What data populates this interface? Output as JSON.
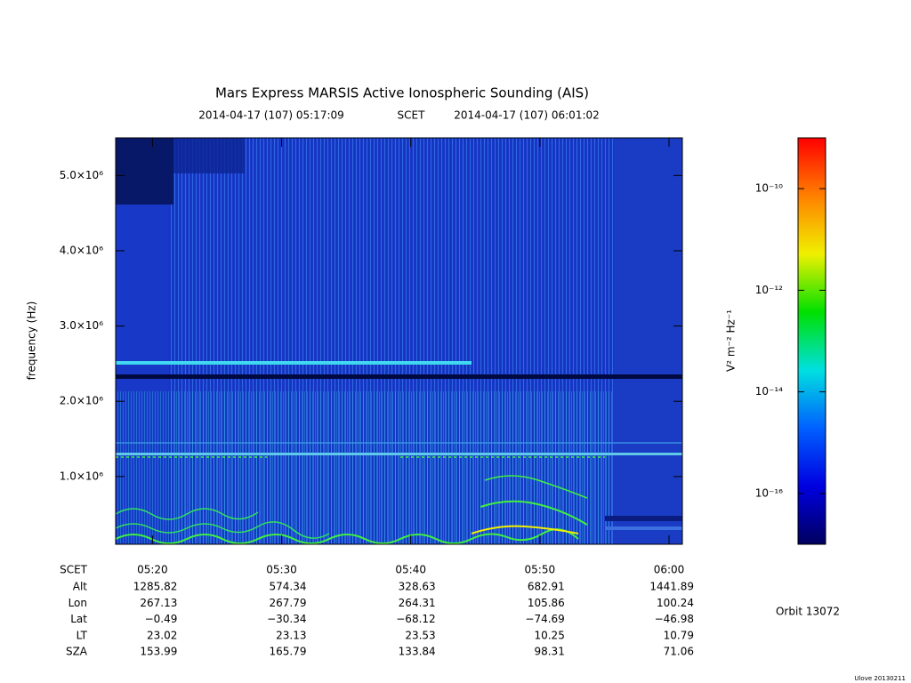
{
  "chart_data": {
    "type": "spectrogram",
    "title": "Mars Express MARSIS Active Ionospheric Sounding (AIS)",
    "start_time": "2014-04-17 (107) 05:17:09",
    "time_system": "SCET",
    "end_time": "2014-04-17 (107) 06:01:02",
    "xlim": [
      "2014-04-17T05:17:09",
      "2014-04-17T06:01:02"
    ],
    "xticks": [
      {
        "value": "2014-04-17T05:20",
        "label": "05:20"
      },
      {
        "value": "2014-04-17T05:30",
        "label": "05:30"
      },
      {
        "value": "2014-04-17T05:40",
        "label": "05:40"
      },
      {
        "value": "2014-04-17T05:50",
        "label": "05:50"
      },
      {
        "value": "2014-04-17T06:00",
        "label": "06:00"
      }
    ],
    "ylabel": "frequency (Hz)",
    "ylim": [
      100000,
      5500000
    ],
    "yticks": [
      {
        "value": 1000000,
        "label": "1.0×10⁶"
      },
      {
        "value": 2000000,
        "label": "2.0×10⁶"
      },
      {
        "value": 3000000,
        "label": "3.0×10⁶"
      },
      {
        "value": 4000000,
        "label": "4.0×10⁶"
      },
      {
        "value": 5000000,
        "label": "5.0×10⁶"
      }
    ],
    "colorbar": {
      "label": "V² m⁻² Hz⁻¹",
      "log": true,
      "zlim": [
        1e-17,
        1e-09
      ],
      "zticks": [
        {
          "value": 1e-16,
          "label": "10⁻¹⁶"
        },
        {
          "value": 1e-14,
          "label": "10⁻¹⁴"
        },
        {
          "value": 1e-12,
          "label": "10⁻¹²"
        },
        {
          "value": 1e-10,
          "label": "10⁻¹⁰"
        }
      ],
      "colors": [
        "#000060",
        "#0000e0",
        "#0060ff",
        "#00e0e0",
        "#00e000",
        "#f0f000",
        "#ff8000",
        "#ff0000"
      ]
    },
    "ephemeris": {
      "header": "SCET",
      "rows": [
        {
          "label": "Alt",
          "values": [
            1285.82,
            574.34,
            328.63,
            682.91,
            1441.89
          ]
        },
        {
          "label": "Lon",
          "values": [
            267.13,
            267.79,
            264.31,
            105.86,
            100.24
          ]
        },
        {
          "label": "Lat",
          "values": [
            -0.49,
            -30.34,
            -68.12,
            -74.69,
            -46.98
          ]
        },
        {
          "label": "LT",
          "values": [
            23.02,
            23.13,
            23.53,
            10.25,
            10.79
          ]
        },
        {
          "label": "SZA",
          "values": [
            153.99,
            165.79,
            133.84,
            98.31,
            71.06
          ]
        }
      ]
    },
    "orbit": "Orbit 13072",
    "version": "Ulove 20130211"
  }
}
